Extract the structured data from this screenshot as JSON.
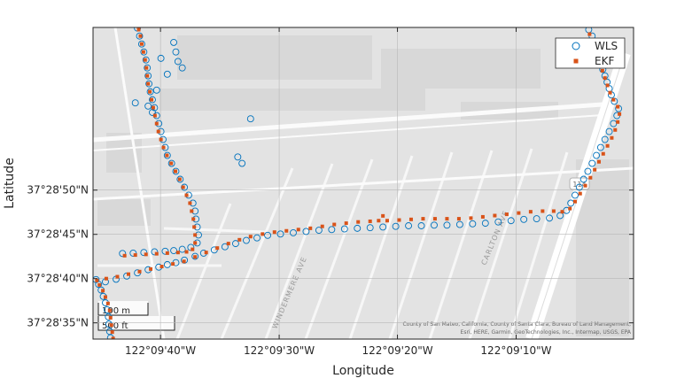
{
  "chart_data": {
    "type": "scatter",
    "xlabel": "Longitude",
    "ylabel": "Latitude",
    "x_ticks": [
      "122°09'40\"W",
      "122°09'30\"W",
      "122°09'20\"W",
      "122°09'10\"W"
    ],
    "x_tick_values": [
      -122.16111,
      -122.15833,
      -122.15556,
      -122.15278
    ],
    "y_ticks": [
      "37°28'35\"N",
      "37°28'40\"N",
      "37°28'45\"N",
      "37°28'50\"N"
    ],
    "y_tick_values": [
      37.47639,
      37.47778,
      37.47917,
      37.48056
    ],
    "xlim": [
      -122.16269,
      -122.15003
    ],
    "ylim": [
      37.47588,
      37.48567
    ],
    "grid": true,
    "legend": {
      "placement": "top-right",
      "entries": [
        "WLS",
        "EKF"
      ]
    },
    "series": [
      {
        "name": "WLS",
        "marker": "circle",
        "color": "#0072BD",
        "points": [
          [
            -122.16228,
            37.47592
          ],
          [
            -122.1623,
            37.47612
          ],
          [
            -122.16232,
            37.47635
          ],
          [
            -122.16233,
            37.47658
          ],
          [
            -122.16236,
            37.4768
          ],
          [
            -122.1624,
            37.47702
          ],
          [
            -122.16245,
            37.47722
          ],
          [
            -122.1625,
            37.47742
          ],
          [
            -122.16256,
            37.4776
          ],
          [
            -122.16262,
            37.47775
          ],
          [
            -122.1624,
            37.47768
          ],
          [
            -122.16215,
            37.47776
          ],
          [
            -122.1619,
            37.47786
          ],
          [
            -122.16165,
            37.47796
          ],
          [
            -122.1614,
            37.47806
          ],
          [
            -122.16115,
            37.47814
          ],
          [
            -122.16095,
            37.47822
          ],
          [
            -122.16075,
            37.47828
          ],
          [
            -122.16055,
            37.47836
          ],
          [
            -122.1603,
            37.47848
          ],
          [
            -122.1601,
            37.47858
          ],
          [
            -122.15985,
            37.47868
          ],
          [
            -122.1596,
            37.47878
          ],
          [
            -122.15935,
            37.47888
          ],
          [
            -122.1591,
            37.47898
          ],
          [
            -122.15885,
            37.47906
          ],
          [
            -122.1586,
            37.47914
          ],
          [
            -122.1583,
            37.47918
          ],
          [
            -122.158,
            37.47922
          ],
          [
            -122.1577,
            37.47926
          ],
          [
            -122.1574,
            37.4793
          ],
          [
            -122.1571,
            37.47932
          ],
          [
            -122.1568,
            37.47934
          ],
          [
            -122.1565,
            37.47936
          ],
          [
            -122.1562,
            37.47938
          ],
          [
            -122.1559,
            37.4794
          ],
          [
            -122.1556,
            37.47942
          ],
          [
            -122.1553,
            37.47944
          ],
          [
            -122.155,
            37.47944
          ],
          [
            -122.1547,
            37.47946
          ],
          [
            -122.1544,
            37.47946
          ],
          [
            -122.1541,
            37.47948
          ],
          [
            -122.1538,
            37.4795
          ],
          [
            -122.1535,
            37.47952
          ],
          [
            -122.1532,
            37.47956
          ],
          [
            -122.1529,
            37.4796
          ],
          [
            -122.1526,
            37.47964
          ],
          [
            -122.1523,
            37.47966
          ],
          [
            -122.152,
            37.47968
          ],
          [
            -122.15175,
            37.47976
          ],
          [
            -122.1516,
            37.47992
          ],
          [
            -122.1515,
            37.48015
          ],
          [
            -122.1514,
            37.4804
          ],
          [
            -122.1513,
            37.48065
          ],
          [
            -122.1512,
            37.4809
          ],
          [
            -122.1511,
            37.48115
          ],
          [
            -122.151,
            37.4814
          ],
          [
            -122.1509,
            37.48165
          ],
          [
            -122.1508,
            37.4819
          ],
          [
            -122.1507,
            37.48215
          ],
          [
            -122.1506,
            37.4824
          ],
          [
            -122.1505,
            37.48265
          ],
          [
            -122.15042,
            37.4829
          ],
          [
            -122.15038,
            37.48312
          ],
          [
            -122.15048,
            37.48335
          ],
          [
            -122.15055,
            37.48355
          ],
          [
            -122.1506,
            37.48375
          ],
          [
            -122.15065,
            37.48395
          ],
          [
            -122.1507,
            37.48415
          ],
          [
            -122.15075,
            37.48435
          ],
          [
            -122.1508,
            37.48455
          ],
          [
            -122.15085,
            37.48475
          ],
          [
            -122.1509,
            37.48495
          ],
          [
            -122.15095,
            37.48515
          ],
          [
            -122.151,
            37.4854
          ],
          [
            -122.15108,
            37.4856
          ],
          [
            -122.162,
            37.47857
          ],
          [
            -122.16175,
            37.47858
          ],
          [
            -122.1615,
            37.4786
          ],
          [
            -122.16125,
            37.47862
          ],
          [
            -122.161,
            37.47864
          ],
          [
            -122.1608,
            37.47866
          ],
          [
            -122.1606,
            37.4787
          ],
          [
            -122.1604,
            37.47876
          ],
          [
            -122.16025,
            37.4789
          ],
          [
            -122.16022,
            37.47915
          ],
          [
            -122.16025,
            37.4794
          ],
          [
            -122.16028,
            37.47965
          ],
          [
            -122.1603,
            37.4799
          ],
          [
            -122.16035,
            37.48015
          ],
          [
            -122.16045,
            37.4804
          ],
          [
            -122.16055,
            37.48065
          ],
          [
            -122.16065,
            37.4809
          ],
          [
            -122.16075,
            37.48115
          ],
          [
            -122.16085,
            37.4814
          ],
          [
            -122.16095,
            37.48165
          ],
          [
            -122.161,
            37.4819
          ],
          [
            -122.16105,
            37.48215
          ],
          [
            -122.1611,
            37.4824
          ],
          [
            -122.16115,
            37.48265
          ],
          [
            -122.1612,
            37.4829
          ],
          [
            -122.16125,
            37.48315
          ],
          [
            -122.1613,
            37.4834
          ],
          [
            -122.16135,
            37.48365
          ],
          [
            -122.16138,
            37.4839
          ],
          [
            -122.1614,
            37.48415
          ],
          [
            -122.16142,
            37.4844
          ],
          [
            -122.16145,
            37.48465
          ],
          [
            -122.1615,
            37.4849
          ],
          [
            -122.16155,
            37.48515
          ],
          [
            -122.1616,
            37.4854
          ],
          [
            -122.16165,
            37.48565
          ],
          [
            -122.1608,
            37.4852
          ],
          [
            -122.16075,
            37.4849
          ],
          [
            -122.1607,
            37.4846
          ],
          [
            -122.1606,
            37.4844
          ],
          [
            -122.1611,
            37.4847
          ],
          [
            -122.16095,
            37.4842
          ],
          [
            -122.1614,
            37.4832
          ],
          [
            -122.1613,
            37.483
          ],
          [
            -122.159,
            37.4828
          ],
          [
            -122.1593,
            37.4816
          ],
          [
            -122.1592,
            37.4814
          ],
          [
            -122.1617,
            37.4833
          ],
          [
            -122.1612,
            37.4837
          ]
        ]
      },
      {
        "name": "EKF",
        "marker": "square",
        "color": "#D95319",
        "points": [
          [
            -122.16222,
            37.4759
          ],
          [
            -122.16224,
            37.4761
          ],
          [
            -122.16226,
            37.47632
          ],
          [
            -122.16228,
            37.47655
          ],
          [
            -122.1623,
            37.47678
          ],
          [
            -122.16234,
            37.477
          ],
          [
            -122.1624,
            37.4772
          ],
          [
            -122.16246,
            37.4774
          ],
          [
            -122.16254,
            37.47758
          ],
          [
            -122.1626,
            37.47772
          ],
          [
            -122.16238,
            37.47778
          ],
          [
            -122.16212,
            37.47784
          ],
          [
            -122.16186,
            37.47792
          ],
          [
            -122.1616,
            37.478
          ],
          [
            -122.16134,
            37.47808
          ],
          [
            -122.16108,
            37.47816
          ],
          [
            -122.16082,
            37.47824
          ],
          [
            -122.16056,
            37.47832
          ],
          [
            -122.1603,
            37.47846
          ],
          [
            -122.16004,
            37.4786
          ],
          [
            -122.15978,
            37.47874
          ],
          [
            -122.15952,
            37.47888
          ],
          [
            -122.15926,
            37.479
          ],
          [
            -122.159,
            37.4791
          ],
          [
            -122.15872,
            37.47918
          ],
          [
            -122.15844,
            37.47924
          ],
          [
            -122.15816,
            37.47928
          ],
          [
            -122.15788,
            37.47932
          ],
          [
            -122.1576,
            37.47936
          ],
          [
            -122.15732,
            37.47942
          ],
          [
            -122.15704,
            37.47948
          ],
          [
            -122.15676,
            37.47952
          ],
          [
            -122.15648,
            37.47956
          ],
          [
            -122.1562,
            37.47958
          ],
          [
            -122.156,
            37.4796
          ],
          [
            -122.1559,
            37.47975
          ],
          [
            -122.1558,
            37.4796
          ],
          [
            -122.15552,
            37.47962
          ],
          [
            -122.15524,
            37.47964
          ],
          [
            -122.15496,
            37.47966
          ],
          [
            -122.15468,
            37.47966
          ],
          [
            -122.1544,
            37.47966
          ],
          [
            -122.15412,
            37.47966
          ],
          [
            -122.15384,
            37.47968
          ],
          [
            -122.15356,
            37.47972
          ],
          [
            -122.15328,
            37.47976
          ],
          [
            -122.153,
            37.4798
          ],
          [
            -122.15272,
            37.47984
          ],
          [
            -122.15244,
            37.47988
          ],
          [
            -122.15216,
            37.4799
          ],
          [
            -122.1519,
            37.4799
          ],
          [
            -122.1517,
            37.47988
          ],
          [
            -122.15152,
            37.47998
          ],
          [
            -122.1514,
            37.4802
          ],
          [
            -122.15128,
            37.48045
          ],
          [
            -122.15116,
            37.4807
          ],
          [
            -122.15104,
            37.48095
          ],
          [
            -122.15094,
            37.4812
          ],
          [
            -122.15084,
            37.48145
          ],
          [
            -122.15074,
            37.4817
          ],
          [
            -122.15064,
            37.48195
          ],
          [
            -122.15054,
            37.4822
          ],
          [
            -122.15046,
            37.48245
          ],
          [
            -122.1504,
            37.4827
          ],
          [
            -122.15036,
            37.48295
          ],
          [
            -122.1504,
            37.48318
          ],
          [
            -122.1505,
            37.4834
          ],
          [
            -122.15058,
            37.48362
          ],
          [
            -122.15064,
            37.48385
          ],
          [
            -122.1507,
            37.48408
          ],
          [
            -122.15076,
            37.48431
          ],
          [
            -122.15082,
            37.48454
          ],
          [
            -122.15088,
            37.48477
          ],
          [
            -122.15094,
            37.485
          ],
          [
            -122.151,
            37.48523
          ],
          [
            -122.15106,
            37.48546
          ],
          [
            -122.16195,
            37.4785
          ],
          [
            -122.1617,
            37.47852
          ],
          [
            -122.16145,
            37.47854
          ],
          [
            -122.1612,
            37.47856
          ],
          [
            -122.16095,
            37.47858
          ],
          [
            -122.1607,
            37.4786
          ],
          [
            -122.1605,
            37.47862
          ],
          [
            -122.16036,
            37.4787
          ],
          [
            -122.1603,
            37.4789
          ],
          [
            -122.1603,
            37.47915
          ],
          [
            -122.16032,
            37.4794
          ],
          [
            -122.16034,
            37.47965
          ],
          [
            -122.16038,
            37.4799
          ],
          [
            -122.16042,
            37.48015
          ],
          [
            -122.1605,
            37.4804
          ],
          [
            -122.16058,
            37.48065
          ],
          [
            -122.16066,
            37.4809
          ],
          [
            -122.16076,
            37.48115
          ],
          [
            -122.16086,
            37.4814
          ],
          [
            -122.16096,
            37.48165
          ],
          [
            -122.16104,
            37.4819
          ],
          [
            -122.1611,
            37.48215
          ],
          [
            -122.16116,
            37.4824
          ],
          [
            -122.1612,
            37.48265
          ],
          [
            -122.16124,
            37.4829
          ],
          [
            -122.16128,
            37.48315
          ],
          [
            -122.16132,
            37.4834
          ],
          [
            -122.16136,
            37.48365
          ],
          [
            -122.1614,
            37.4839
          ],
          [
            -122.16142,
            37.48415
          ],
          [
            -122.16144,
            37.4844
          ],
          [
            -122.16147,
            37.48465
          ],
          [
            -122.16151,
            37.4849
          ],
          [
            -122.16155,
            37.48515
          ],
          [
            -122.16158,
            37.4854
          ],
          [
            -122.16162,
            37.4856
          ]
        ]
      }
    ]
  },
  "map": {
    "street_labels": [
      "WINDERMERE AVE",
      "CARLTON AVE"
    ],
    "highway_shield": "114",
    "attribution_line1": "County of San Mateo, California, County of Santa Clara, Bureau of Land Management,",
    "attribution_line2": "Esri, HERE, Garmin, GeoTechnologies, Inc., Intermap, USGS, EPA",
    "scalebar_metric": "100 m",
    "scalebar_imperial": "500 ft"
  },
  "colors": {
    "map_background": "#e3e3e3",
    "road": "#fbfbfb",
    "highway": "#ffffff",
    "building": "#d6d6d6",
    "wls": "#0072BD",
    "ekf": "#D95319"
  }
}
